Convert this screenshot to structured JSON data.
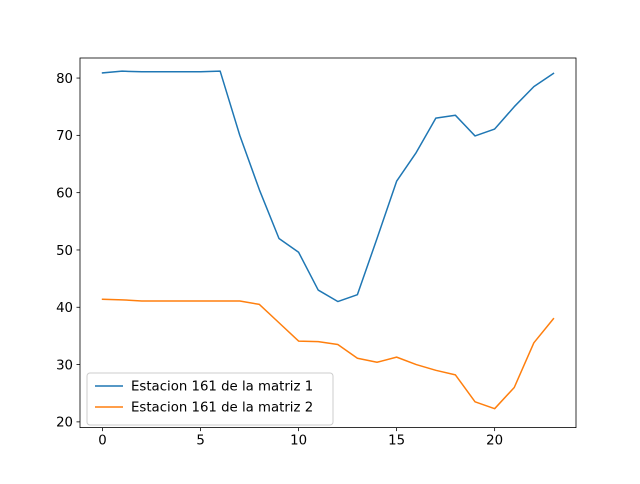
{
  "chart_data": {
    "type": "line",
    "title": "",
    "xlabel": "",
    "ylabel": "",
    "xlim": [
      -1.15,
      24.15
    ],
    "ylim": [
      19.0,
      83.5
    ],
    "xticks": [
      0,
      5,
      10,
      15,
      20
    ],
    "yticks": [
      20,
      30,
      40,
      50,
      60,
      70,
      80
    ],
    "grid": false,
    "legend_position": "lower-left",
    "x": [
      0,
      1,
      2,
      3,
      4,
      5,
      6,
      7,
      8,
      9,
      10,
      11,
      12,
      13,
      14,
      15,
      16,
      17,
      18,
      19,
      20,
      21,
      22,
      23
    ],
    "series": [
      {
        "name": "Estacion 161 de la matriz 1",
        "color": "#1f77b4",
        "values": [
          80.9,
          81.2,
          81.1,
          81.1,
          81.1,
          81.1,
          81.2,
          70.0,
          60.5,
          52.0,
          49.6,
          43.0,
          41.0,
          42.2,
          52.0,
          62.0,
          67.0,
          73.0,
          73.5,
          69.9,
          71.1,
          75.0,
          78.5,
          80.8
        ]
      },
      {
        "name": "Estacion 161 de la matriz 2",
        "color": "#ff7f0e",
        "values": [
          41.4,
          41.3,
          41.1,
          41.1,
          41.1,
          41.1,
          41.1,
          41.1,
          40.5,
          37.3,
          34.1,
          34.0,
          33.5,
          31.1,
          30.4,
          31.3,
          30.0,
          29.0,
          28.2,
          23.5,
          22.3,
          26.0,
          33.8,
          38.0
        ]
      }
    ]
  }
}
